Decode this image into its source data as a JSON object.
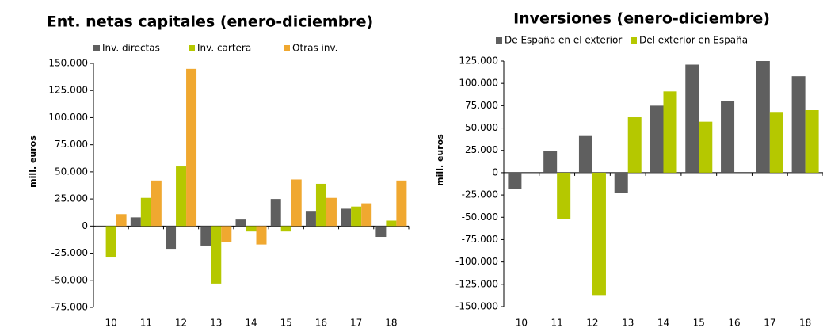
{
  "chart_data": [
    {
      "type": "bar",
      "title": "Ent. netas capitales (enero-diciembre)",
      "y_label": "mill. euros",
      "categories": [
        "10",
        "11",
        "12",
        "13",
        "14",
        "15",
        "16",
        "17",
        "18"
      ],
      "series": [
        {
          "name": "Inv. directas",
          "color": "#5f5f5f",
          "values": [
            -1000,
            8000,
            -21000,
            -18000,
            6000,
            25000,
            14000,
            16000,
            -10000
          ]
        },
        {
          "name": "Inv. cartera",
          "color": "#b5c800",
          "values": [
            -29000,
            26000,
            55000,
            -53000,
            -5000,
            -5000,
            39000,
            18000,
            5000
          ]
        },
        {
          "name": "Otras inv.",
          "color": "#f0a830",
          "values": [
            11000,
            42000,
            145000,
            -15000,
            -17000,
            43000,
            26000,
            21000,
            42000
          ]
        }
      ],
      "ylim": [
        -75000,
        150000
      ],
      "yticks": [
        {
          "value": -75000,
          "label": "-75.000"
        },
        {
          "value": -50000,
          "label": "-50.000"
        },
        {
          "value": -25000,
          "label": "-25.000"
        },
        0,
        {
          "value": 25000,
          "label": "25.000"
        },
        {
          "value": 50000,
          "label": "50.000"
        },
        {
          "value": 75000,
          "label": "75.000"
        },
        {
          "value": 100000,
          "label": "100.000"
        },
        {
          "value": 125000,
          "label": "125.000"
        },
        {
          "value": 150000,
          "label": "150.000"
        }
      ]
    },
    {
      "type": "bar",
      "title": "Inversiones (enero-diciembre)",
      "y_label": "mill. euros",
      "categories": [
        "10",
        "11",
        "12",
        "13",
        "14",
        "15",
        "16",
        "17",
        "18"
      ],
      "series": [
        {
          "name": "De España en el exterior",
          "color": "#5f5f5f",
          "values": [
            -18000,
            24000,
            41000,
            -23000,
            75000,
            121000,
            80000,
            125000,
            108000
          ]
        },
        {
          "name": "Del exterior en España",
          "color": "#b5c800",
          "values": [
            0,
            -52000,
            -137000,
            62000,
            91000,
            57000,
            0,
            68000,
            70000
          ]
        }
      ],
      "ylim": [
        -150000,
        125000
      ],
      "yticks": [
        {
          "value": -150000,
          "label": "-150.000"
        },
        {
          "value": -125000,
          "label": "-125.000"
        },
        {
          "value": -100000,
          "label": "-100.000"
        },
        {
          "value": -75000,
          "label": "-75.000"
        },
        {
          "value": -50000,
          "label": "-50.000"
        },
        {
          "value": -25000,
          "label": "-25.000"
        },
        0,
        {
          "value": 25000,
          "label": "25.000"
        },
        {
          "value": 50000,
          "label": "50.000"
        },
        {
          "value": 75000,
          "label": "75.000"
        },
        {
          "value": 100000,
          "label": "100.000"
        },
        {
          "value": 125000,
          "label": "125.000"
        }
      ]
    }
  ]
}
